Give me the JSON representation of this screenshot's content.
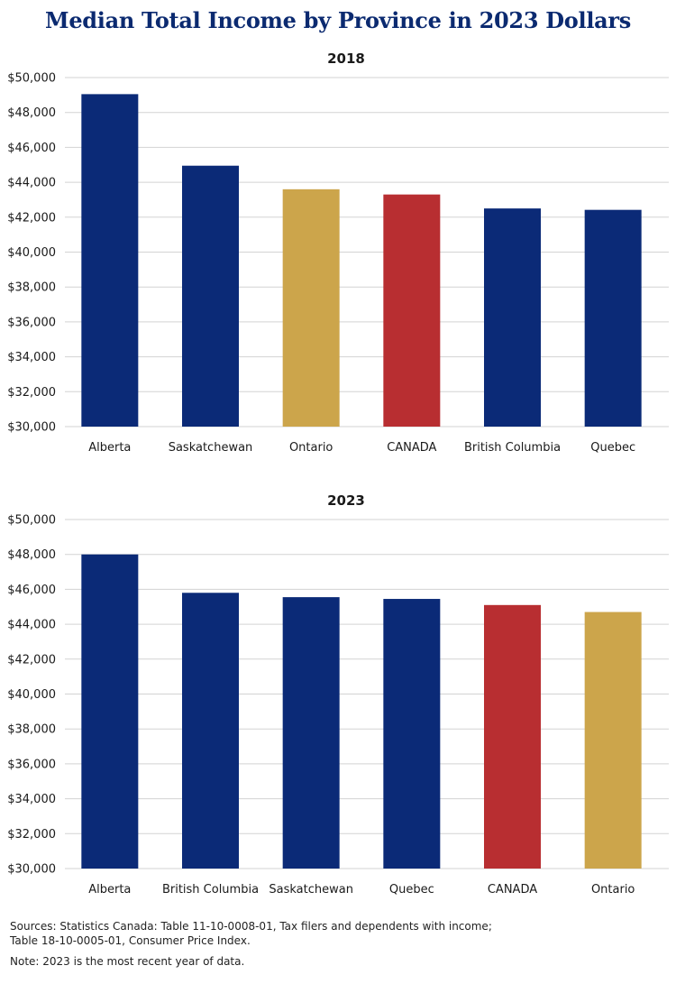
{
  "title": "Median Total Income by Province in 2023 Dollars",
  "colors": {
    "navy": "#0b2a77",
    "gold": "#cca54b",
    "red": "#b82e31"
  },
  "chart_data": [
    {
      "type": "bar",
      "title": "2018",
      "categories": [
        "Alberta",
        "Saskatchewan",
        "Ontario",
        "CANADA",
        "British Columbia",
        "Quebec"
      ],
      "values": [
        49050,
        44950,
        43600,
        43300,
        42500,
        42420
      ],
      "bar_colors": [
        "#0b2a77",
        "#0b2a77",
        "#cca54b",
        "#b82e31",
        "#0b2a77",
        "#0b2a77"
      ],
      "ylim": [
        30000,
        50000
      ],
      "yticks": [
        "$30,000",
        "$32,000",
        "$34,000",
        "$36,000",
        "$38,000",
        "$40,000",
        "$42,000",
        "$44,000",
        "$46,000",
        "$48,000",
        "$50,000"
      ],
      "grid": true
    },
    {
      "type": "bar",
      "title": "2023",
      "categories": [
        "Alberta",
        "British Columbia",
        "Saskatchewan",
        "Quebec",
        "CANADA",
        "Ontario"
      ],
      "values": [
        48000,
        45800,
        45550,
        45450,
        45100,
        44700
      ],
      "bar_colors": [
        "#0b2a77",
        "#0b2a77",
        "#0b2a77",
        "#0b2a77",
        "#b82e31",
        "#cca54b"
      ],
      "ylim": [
        30000,
        50000
      ],
      "yticks": [
        "$30,000",
        "$32,000",
        "$34,000",
        "$36,000",
        "$38,000",
        "$40,000",
        "$42,000",
        "$44,000",
        "$46,000",
        "$48,000",
        "$50,000"
      ],
      "grid": true
    }
  ],
  "footer": {
    "sources": "Sources: Statistics Canada: Table 11-10-0008-01, Tax filers and dependents with income; Table 18-10-0005-01, Consumer Price Index.",
    "note": "Note: 2023 is the most recent year of data."
  }
}
